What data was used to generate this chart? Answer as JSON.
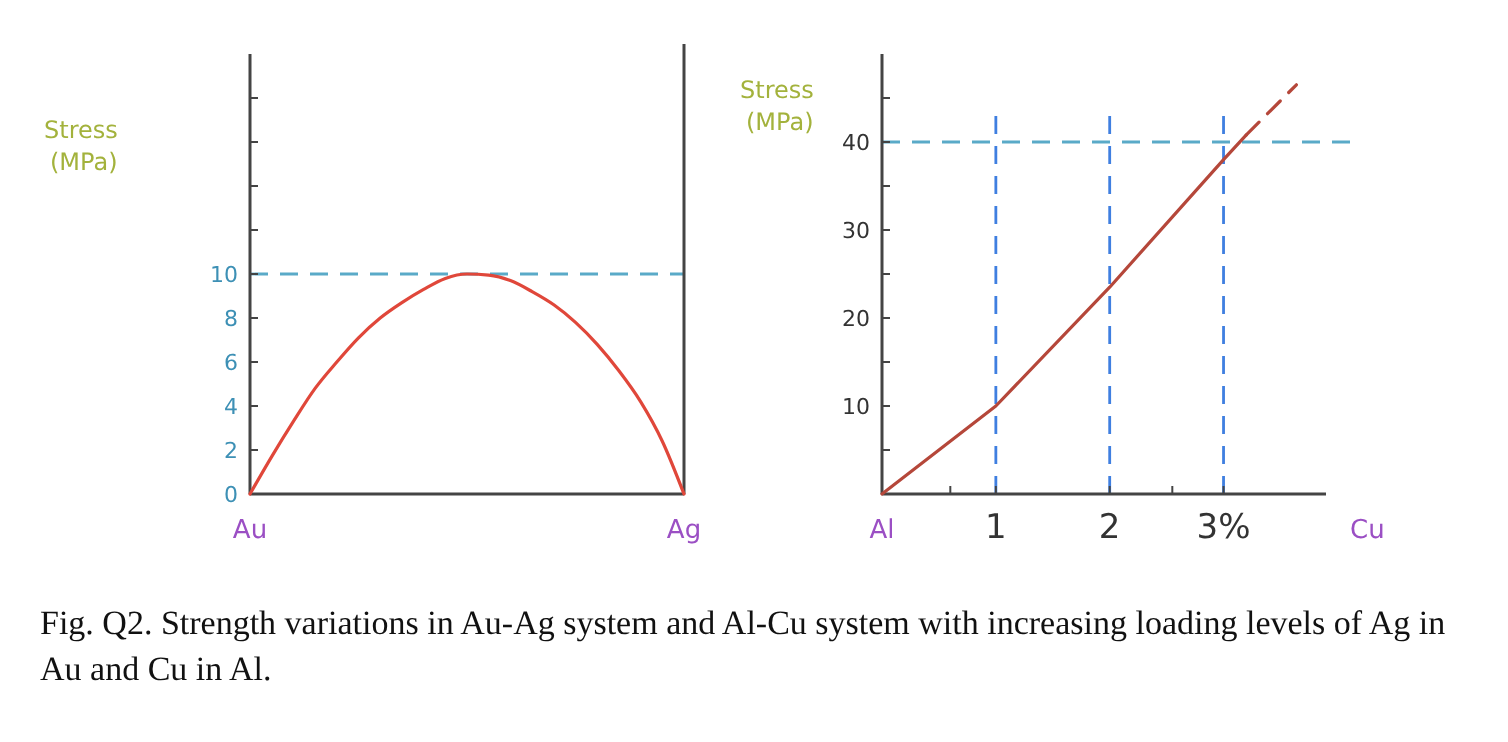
{
  "chart_data": [
    {
      "type": "line",
      "ylabel": "Stress (MPa)",
      "ylim": [
        0,
        20
      ],
      "categories": [
        "Au",
        null,
        null,
        null,
        null,
        null,
        null,
        null,
        null,
        null,
        null,
        null,
        null,
        null,
        null,
        null,
        null,
        null,
        null,
        null,
        "Ag"
      ],
      "yticks": [
        0,
        2,
        4,
        6,
        8,
        10,
        {
          "value": 12,
          "label": null
        },
        {
          "value": 14,
          "label": null
        },
        {
          "value": 16,
          "label": null
        },
        {
          "value": 18,
          "label": null
        }
      ],
      "series": [
        {
          "color": "#e0473a",
          "line_style": "solid",
          "values": [
            0,
            1.7,
            3.3,
            4.8,
            6,
            7.1,
            8,
            8.7,
            9.3,
            9.8,
            10,
            9.95,
            9.7,
            9.2,
            8.6,
            7.8,
            6.8,
            5.6,
            4.2,
            2.4,
            0
          ]
        }
      ],
      "ref_lines": [
        {
          "axis": "y",
          "value": 10,
          "color": "#5aaac8",
          "line_style": "dashed"
        }
      ],
      "annotations": [
        "Fig. Q2. Strength variations in Au-Ag system and Al-Cu system with increasing loading levels of Ag in Au and Cu in Al."
      ]
    },
    {
      "type": "line",
      "ylabel": "Stress (MPa)",
      "xlabel": "Cu",
      "xlim": [
        0,
        3.9
      ],
      "ylim": [
        0,
        50
      ],
      "xticks": [
        {
          "value": 0,
          "label": "Al"
        },
        {
          "value": 0.6,
          "label": null
        },
        1,
        2,
        {
          "value": 2.55,
          "label": null
        },
        {
          "value": 3,
          "label": "3%"
        }
      ],
      "yticks": [
        {
          "value": 5,
          "label": null
        },
        10,
        {
          "value": 15,
          "label": null
        },
        20,
        {
          "value": 25,
          "label": null
        },
        30,
        {
          "value": 35,
          "label": null
        },
        40,
        {
          "value": 45,
          "label": null
        }
      ],
      "series": [
        {
          "color": "#b5473a",
          "line_style": "solid",
          "x": [
            0,
            1,
            2,
            3,
            3.2
          ],
          "values": [
            0,
            10,
            23.5,
            38,
            40.8
          ]
        },
        {
          "color": "#b5473a",
          "line_style": "dashed",
          "x": [
            3.2,
            3.64
          ],
          "values": [
            40.8,
            46.5
          ]
        }
      ],
      "ref_lines": [
        {
          "axis": "y",
          "value": 40,
          "color": "#5aaac8",
          "line_style": "dashed"
        },
        {
          "axis": "x",
          "value": 1,
          "color": "#3f7fe0",
          "line_style": "dashed"
        },
        {
          "axis": "x",
          "value": 2,
          "color": "#3f7fe0",
          "line_style": "dashed"
        },
        {
          "axis": "x",
          "value": 3,
          "color": "#3f7fe0",
          "line_style": "dashed"
        }
      ]
    }
  ]
}
